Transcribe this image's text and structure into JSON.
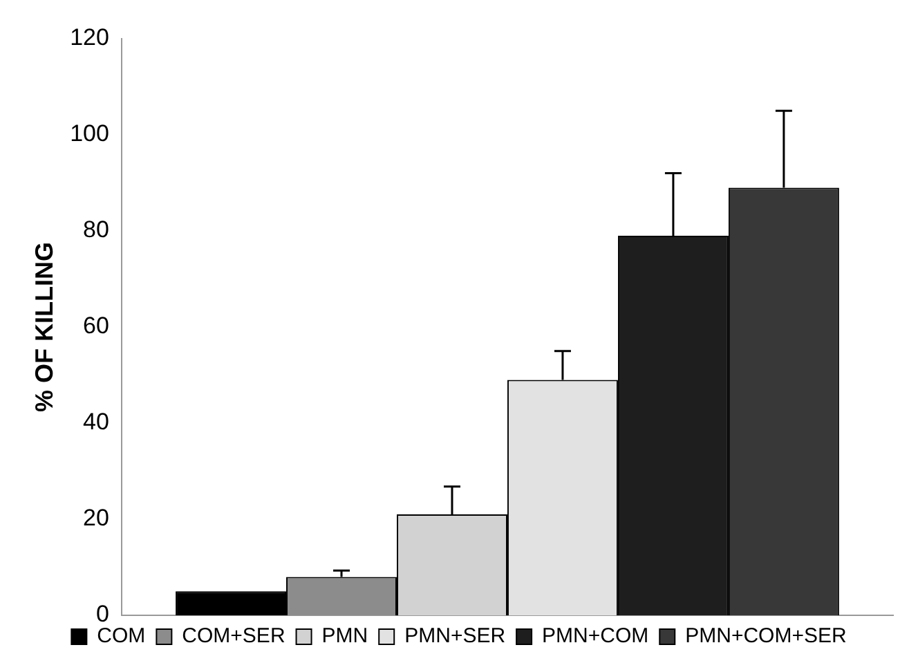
{
  "chart_data": {
    "type": "bar",
    "ylabel": "% OF KILLING",
    "categories": [
      null
    ],
    "series": [
      {
        "name": "COM",
        "color": "#000000",
        "values": [
          5
        ],
        "errors": [
          null
        ]
      },
      {
        "name": "COM+SER",
        "color": "#8c8c8c",
        "values": [
          8
        ],
        "errors": [
          [
            8,
            9.3
          ]
        ]
      },
      {
        "name": "PMN",
        "color": "#d2d2d2",
        "values": [
          21
        ],
        "errors": [
          [
            21,
            26.8
          ]
        ]
      },
      {
        "name": "PMN+SER",
        "color": "#e2e2e2",
        "values": [
          49
        ],
        "errors": [
          [
            49,
            55
          ]
        ]
      },
      {
        "name": "PMN+COM",
        "color": "#1e1e1e",
        "values": [
          79
        ],
        "errors": [
          [
            79,
            92
          ]
        ]
      },
      {
        "name": "PMN+COM+SER",
        "color": "#383838",
        "values": [
          89
        ],
        "errors": [
          [
            89,
            105
          ]
        ]
      }
    ],
    "ylim": [
      0,
      120
    ],
    "yticks": [
      0,
      20,
      40,
      60,
      80,
      100,
      120
    ],
    "grid": false,
    "legend": "bottom"
  }
}
